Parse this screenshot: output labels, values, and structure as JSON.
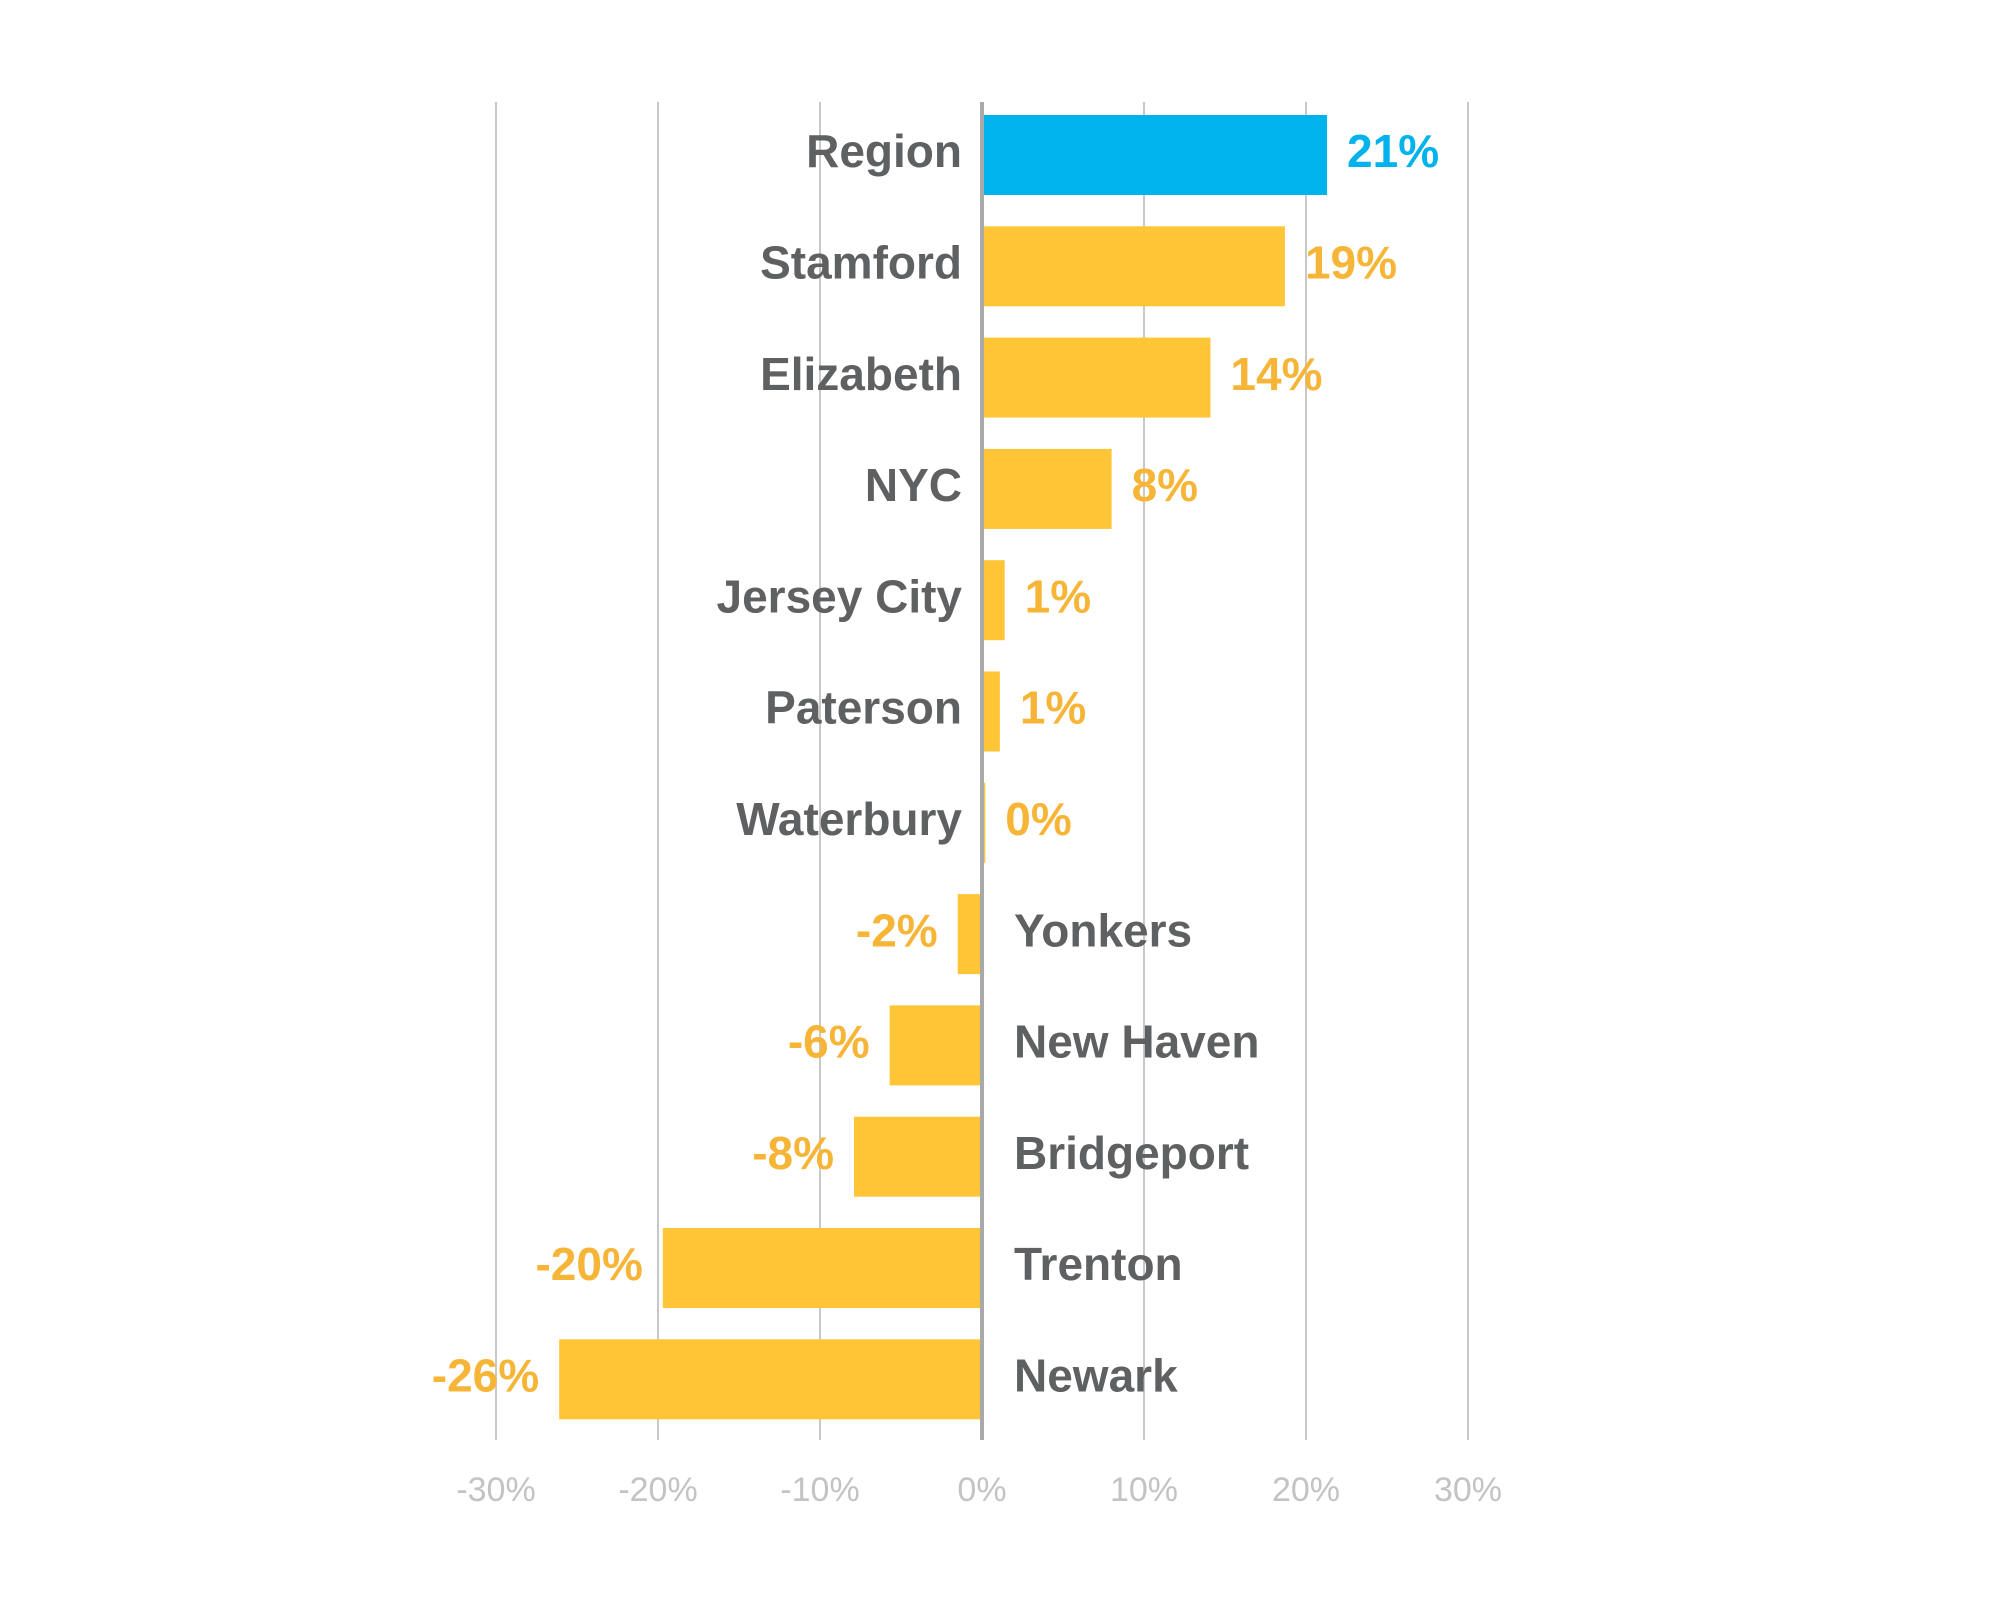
{
  "colors": {
    "positive_bar": "#fec536",
    "highlight_bar": "#00b3ec",
    "category_text": "#5f6062",
    "value_text": "#f7b538",
    "highlight_text": "#00b3ec",
    "gridline": "#c8c8c8",
    "zero_line": "#a9a9a9",
    "tick_text": "#c3c3c3"
  },
  "chart_data": {
    "type": "bar",
    "orientation": "horizontal",
    "categories": [
      "Region",
      "Stamford",
      "Elizabeth",
      "NYC",
      "Jersey City",
      "Paterson",
      "Waterbury",
      "Yonkers",
      "New Haven",
      "Bridgeport",
      "Trenton",
      "Newark"
    ],
    "values": [
      21.3,
      18.7,
      14.1,
      8.0,
      1.4,
      1.1,
      0.2,
      -1.5,
      -5.7,
      -7.9,
      -19.7,
      -26.1
    ],
    "value_labels": [
      "21%",
      "19%",
      "14%",
      "8%",
      "1%",
      "1%",
      "0%",
      "-2%",
      "-6%",
      "-8%",
      "-20%",
      "-26%"
    ],
    "highlight_category": "Region",
    "xlim": [
      -30,
      30
    ],
    "xticks": [
      -30,
      -20,
      -10,
      0,
      10,
      20,
      30
    ],
    "xtick_labels": [
      "-30%",
      "-20%",
      "-10%",
      "0%",
      "10%",
      "20%",
      "30%"
    ],
    "grid": true,
    "legend": "none",
    "title": "",
    "xlabel": "",
    "ylabel": ""
  }
}
